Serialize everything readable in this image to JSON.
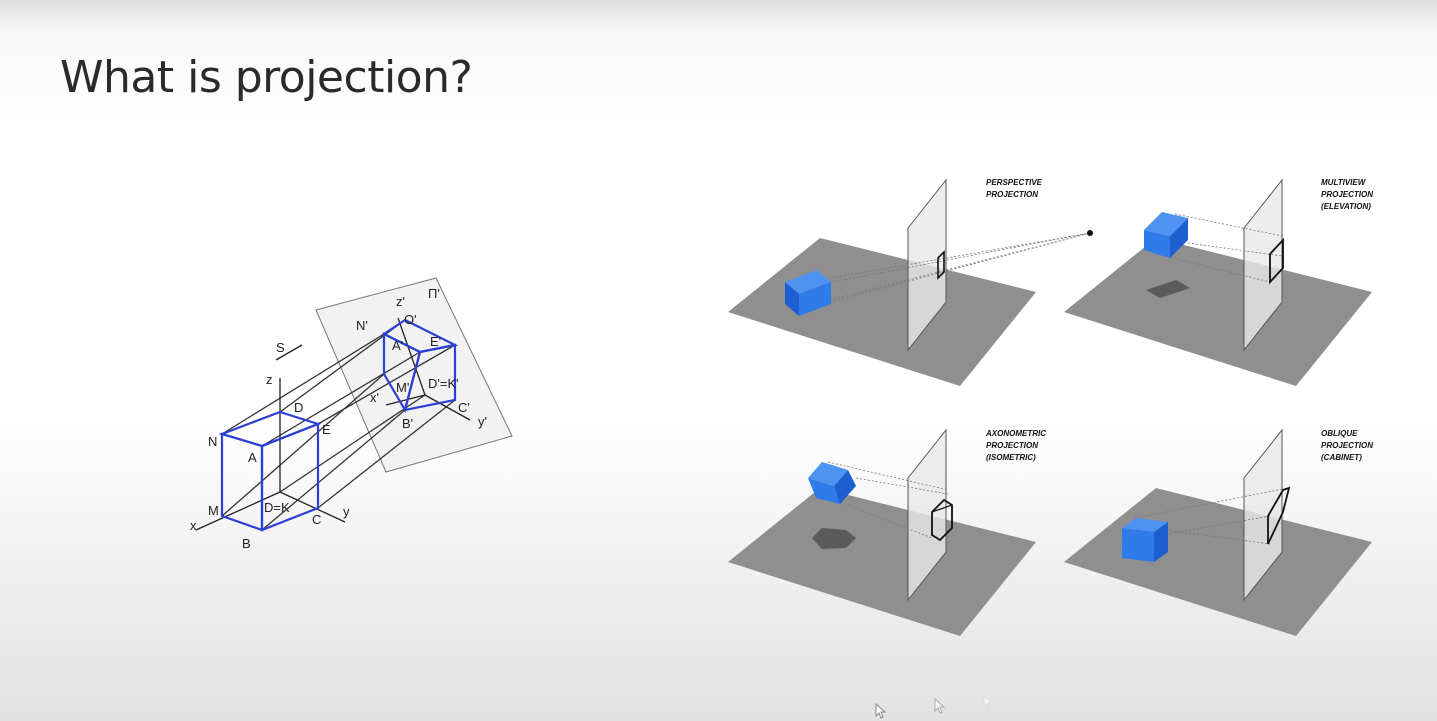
{
  "slide": {
    "title": "What is projection?"
  },
  "left_diagram": {
    "labels": {
      "S": "S",
      "pi": "Π'",
      "z_prime": "z'",
      "O_prime": "O'",
      "N_prime": "N'",
      "A_prime": "A'",
      "E_prime": "E'",
      "M_prime": "M'",
      "D_prime_K_prime": "D'=K'",
      "x_prime": "x'",
      "C_prime": "C'",
      "y_prime": "y'",
      "B_prime": "B'",
      "z": "z",
      "D": "D",
      "N": "N",
      "A": "A",
      "E": "E",
      "M": "M",
      "x": "x",
      "D_K": "D=K",
      "C": "C",
      "y": "y",
      "B": "B"
    },
    "accent_color": "#2b3fd6"
  },
  "panels": [
    {
      "caption": [
        "PERSPECTIVE",
        "PROJECTION"
      ]
    },
    {
      "caption": [
        "MULTIVIEW",
        "PROJECTION",
        "(ELEVATION)"
      ]
    },
    {
      "caption": [
        "AXONOMETRIC",
        "PROJECTION",
        "(ISOMETRIC)"
      ]
    },
    {
      "caption": [
        "OBLIQUE",
        "PROJECTION",
        "(CABINET)"
      ]
    }
  ],
  "colors": {
    "cube": "#2f7bea",
    "ground": "#8f8f8f",
    "plane": "#e9e9e9"
  },
  "icons": [
    "cursor-icon",
    "cursor-icon",
    "cursor-icon"
  ]
}
